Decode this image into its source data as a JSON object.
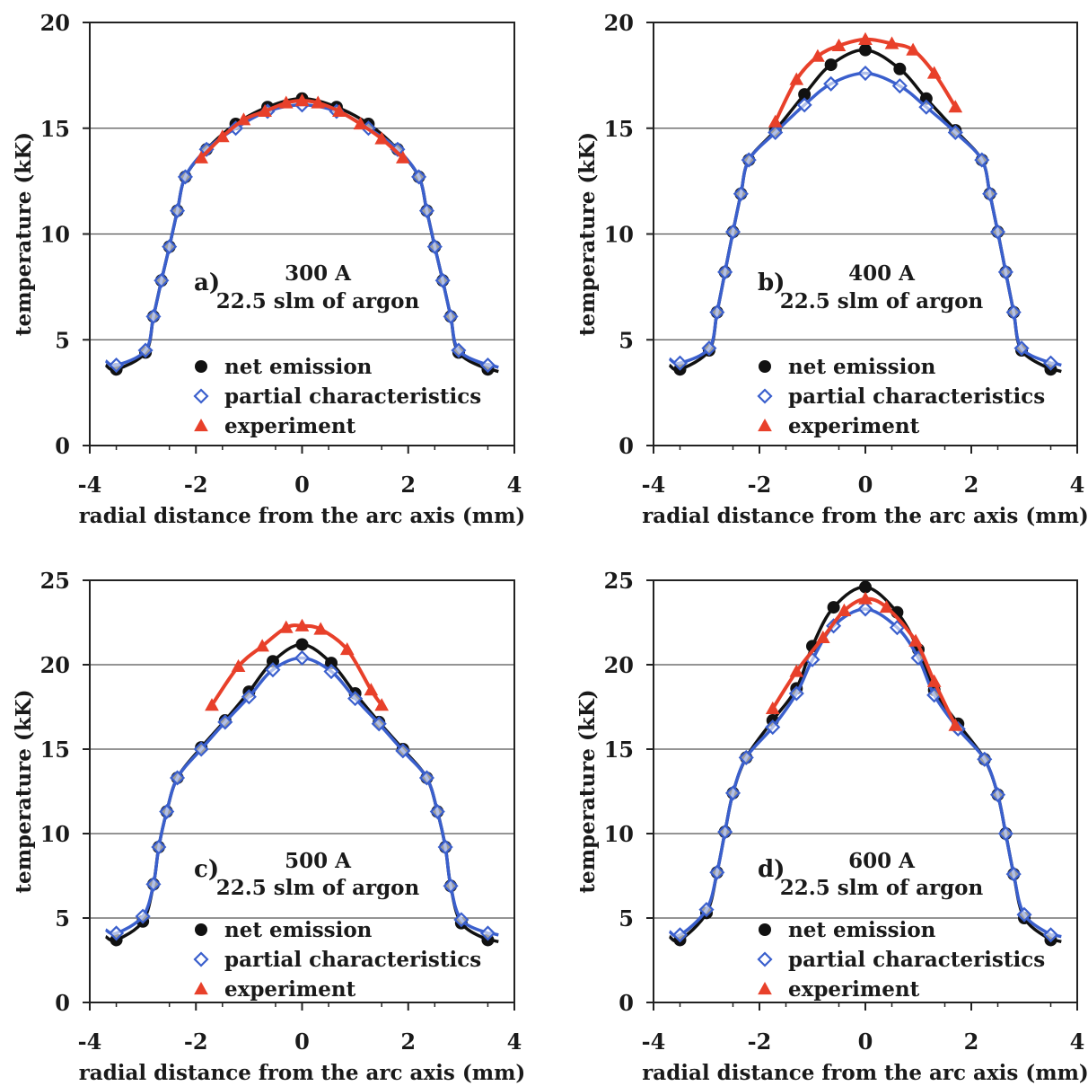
{
  "chart_data": [
    {
      "type": "line",
      "panel_label": "a)",
      "annotation": [
        "300 A",
        "22.5 slm of argon"
      ],
      "xlabel": "radial distance from the arc axis (mm)",
      "ylabel": "temperature (kK)",
      "xlim": [
        -4,
        4
      ],
      "ylim": [
        0,
        20
      ],
      "xticks": [
        -4,
        -2,
        0,
        2,
        4
      ],
      "yticks": [
        0,
        5,
        10,
        15,
        20
      ],
      "grid": "horizontal",
      "legend_position": "bottom-center",
      "series": [
        {
          "name": "net emission",
          "color": "#111111",
          "marker": "circle",
          "x": [
            -3.5,
            -2.95,
            -2.8,
            -2.65,
            -2.5,
            -2.35,
            -2.2,
            -1.8,
            -1.25,
            -0.65,
            0,
            0.65,
            1.25,
            1.8,
            2.2,
            2.35,
            2.5,
            2.65,
            2.8,
            2.95,
            3.5
          ],
          "y": [
            3.6,
            4.4,
            6.1,
            7.8,
            9.4,
            11.1,
            12.7,
            14.0,
            15.2,
            16.0,
            16.4,
            16.0,
            15.2,
            14.0,
            12.7,
            11.1,
            9.4,
            7.8,
            6.1,
            4.4,
            3.6
          ]
        },
        {
          "name": "partial characteristics",
          "color": "#3a5fcd",
          "marker": "diamond",
          "x": [
            -3.5,
            -2.95,
            -2.8,
            -2.65,
            -2.5,
            -2.35,
            -2.2,
            -1.8,
            -1.25,
            -0.65,
            0,
            0.65,
            1.25,
            1.8,
            2.2,
            2.35,
            2.5,
            2.65,
            2.8,
            2.95,
            3.5
          ],
          "y": [
            3.8,
            4.5,
            6.1,
            7.8,
            9.4,
            11.1,
            12.7,
            14.0,
            15.0,
            15.8,
            16.1,
            15.8,
            15.0,
            14.0,
            12.7,
            11.1,
            9.4,
            7.8,
            6.1,
            4.5,
            3.8
          ]
        },
        {
          "name": "experiment",
          "color": "#e8402a",
          "marker": "triangle",
          "x": [
            -1.9,
            -1.5,
            -1.1,
            -0.7,
            -0.3,
            0,
            0.3,
            0.7,
            1.1,
            1.5,
            1.9
          ],
          "y": [
            13.6,
            14.6,
            15.4,
            15.8,
            16.2,
            16.3,
            16.2,
            15.8,
            15.2,
            14.5,
            13.6
          ]
        }
      ]
    },
    {
      "type": "line",
      "panel_label": "b)",
      "annotation": [
        "400 A",
        "22.5 slm of argon"
      ],
      "xlabel": "radial distance from the arc axis (mm)",
      "ylabel": "temperature (kK)",
      "xlim": [
        -4,
        4
      ],
      "ylim": [
        0,
        20
      ],
      "xticks": [
        -4,
        -2,
        0,
        2,
        4
      ],
      "yticks": [
        0,
        5,
        10,
        15,
        20
      ],
      "grid": "horizontal",
      "legend_position": "bottom-center",
      "series": [
        {
          "name": "net emission",
          "color": "#111111",
          "marker": "circle",
          "x": [
            -3.5,
            -2.95,
            -2.8,
            -2.65,
            -2.5,
            -2.35,
            -2.2,
            -1.7,
            -1.15,
            -0.65,
            0,
            0.65,
            1.15,
            1.7,
            2.2,
            2.35,
            2.5,
            2.65,
            2.8,
            2.95,
            3.5
          ],
          "y": [
            3.6,
            4.5,
            6.3,
            8.2,
            10.1,
            11.9,
            13.5,
            14.9,
            16.6,
            18.0,
            18.7,
            17.8,
            16.4,
            14.9,
            13.5,
            11.9,
            10.1,
            8.2,
            6.3,
            4.5,
            3.6
          ]
        },
        {
          "name": "partial characteristics",
          "color": "#3a5fcd",
          "marker": "diamond",
          "x": [
            -3.5,
            -2.95,
            -2.8,
            -2.65,
            -2.5,
            -2.35,
            -2.2,
            -1.7,
            -1.15,
            -0.65,
            0,
            0.65,
            1.15,
            1.7,
            2.2,
            2.35,
            2.5,
            2.65,
            2.8,
            2.95,
            3.5
          ],
          "y": [
            3.9,
            4.6,
            6.3,
            8.2,
            10.1,
            11.9,
            13.5,
            14.8,
            16.1,
            17.1,
            17.6,
            17.0,
            16.0,
            14.8,
            13.5,
            11.9,
            10.1,
            8.2,
            6.3,
            4.6,
            3.9
          ]
        },
        {
          "name": "experiment",
          "color": "#e8402a",
          "marker": "triangle",
          "x": [
            -1.7,
            -1.3,
            -0.9,
            -0.5,
            0,
            0.5,
            0.9,
            1.3,
            1.7
          ],
          "y": [
            15.3,
            17.3,
            18.4,
            18.9,
            19.2,
            19.0,
            18.7,
            17.6,
            16.0
          ]
        }
      ]
    },
    {
      "type": "line",
      "panel_label": "c)",
      "annotation": [
        "500 A",
        "22.5 slm of argon"
      ],
      "xlabel": "radial distance from the arc axis (mm)",
      "ylabel": "temperature (kK)",
      "xlim": [
        -4,
        4
      ],
      "ylim": [
        0,
        25
      ],
      "xticks": [
        -4,
        -2,
        0,
        2,
        4
      ],
      "yticks": [
        0,
        5,
        10,
        15,
        20,
        25
      ],
      "grid": "horizontal",
      "legend_position": "bottom-center",
      "series": [
        {
          "name": "net emission",
          "color": "#111111",
          "marker": "circle",
          "x": [
            -3.5,
            -3.0,
            -2.8,
            -2.7,
            -2.55,
            -2.35,
            -1.9,
            -1.45,
            -1.0,
            -0.55,
            0,
            0.55,
            1.0,
            1.45,
            1.9,
            2.35,
            2.55,
            2.7,
            2.8,
            3.0,
            3.5
          ],
          "y": [
            3.7,
            4.8,
            7.0,
            9.2,
            11.3,
            13.3,
            15.1,
            16.7,
            18.4,
            20.2,
            21.2,
            20.1,
            18.3,
            16.6,
            15.0,
            13.3,
            11.3,
            9.2,
            6.9,
            4.7,
            3.7
          ]
        },
        {
          "name": "partial characteristics",
          "color": "#3a5fcd",
          "marker": "diamond",
          "x": [
            -3.5,
            -3.0,
            -2.8,
            -2.7,
            -2.55,
            -2.35,
            -1.9,
            -1.45,
            -1.0,
            -0.55,
            0,
            0.55,
            1.0,
            1.45,
            1.9,
            2.35,
            2.55,
            2.7,
            2.8,
            3.0,
            3.5
          ],
          "y": [
            4.1,
            5.1,
            7.0,
            9.2,
            11.3,
            13.3,
            15.0,
            16.6,
            18.1,
            19.7,
            20.4,
            19.6,
            18.0,
            16.5,
            14.9,
            13.3,
            11.3,
            9.2,
            6.9,
            4.9,
            4.1
          ]
        },
        {
          "name": "experiment",
          "color": "#e8402a",
          "marker": "triangle",
          "x": [
            -1.7,
            -1.2,
            -0.75,
            -0.3,
            0,
            0.35,
            0.85,
            1.3,
            1.5
          ],
          "y": [
            17.6,
            19.9,
            21.1,
            22.2,
            22.3,
            22.1,
            20.9,
            18.5,
            17.6
          ]
        }
      ]
    },
    {
      "type": "line",
      "panel_label": "d)",
      "annotation": [
        "600 A",
        "22.5 slm of argon"
      ],
      "xlabel": "radial distance from the arc axis (mm)",
      "ylabel": "temperature (kK)",
      "xlim": [
        -4,
        4
      ],
      "ylim": [
        0,
        25
      ],
      "xticks": [
        -4,
        -2,
        0,
        2,
        4
      ],
      "yticks": [
        0,
        5,
        10,
        15,
        20,
        25
      ],
      "grid": "horizontal",
      "legend_position": "bottom-center",
      "series": [
        {
          "name": "net emission",
          "color": "#111111",
          "marker": "circle",
          "x": [
            -3.5,
            -3.0,
            -2.8,
            -2.65,
            -2.5,
            -2.25,
            -1.75,
            -1.3,
            -1.0,
            -0.6,
            0,
            0.6,
            1.0,
            1.3,
            1.75,
            2.25,
            2.5,
            2.65,
            2.8,
            3.0,
            3.5
          ],
          "y": [
            3.7,
            5.3,
            7.7,
            10.1,
            12.4,
            14.5,
            16.7,
            18.6,
            21.1,
            23.4,
            24.6,
            23.1,
            20.9,
            18.5,
            16.5,
            14.4,
            12.3,
            10.0,
            7.6,
            5.0,
            3.7
          ]
        },
        {
          "name": "partial characteristics",
          "color": "#3a5fcd",
          "marker": "diamond",
          "x": [
            -3.5,
            -3.0,
            -2.8,
            -2.65,
            -2.5,
            -2.25,
            -1.75,
            -1.3,
            -1.0,
            -0.6,
            0,
            0.6,
            1.0,
            1.3,
            1.75,
            2.25,
            2.5,
            2.65,
            2.8,
            3.0,
            3.5
          ],
          "y": [
            4.0,
            5.5,
            7.7,
            10.1,
            12.4,
            14.5,
            16.3,
            18.3,
            20.3,
            22.3,
            23.3,
            22.2,
            20.4,
            18.2,
            16.2,
            14.4,
            12.3,
            10.0,
            7.6,
            5.2,
            4.0
          ]
        },
        {
          "name": "experiment",
          "color": "#e8402a",
          "marker": "triangle",
          "x": [
            -1.75,
            -1.3,
            -0.8,
            -0.4,
            0,
            0.4,
            0.95,
            1.3,
            1.7
          ],
          "y": [
            17.4,
            19.6,
            21.6,
            23.2,
            23.9,
            23.4,
            21.4,
            19.0,
            16.4
          ]
        }
      ]
    }
  ]
}
